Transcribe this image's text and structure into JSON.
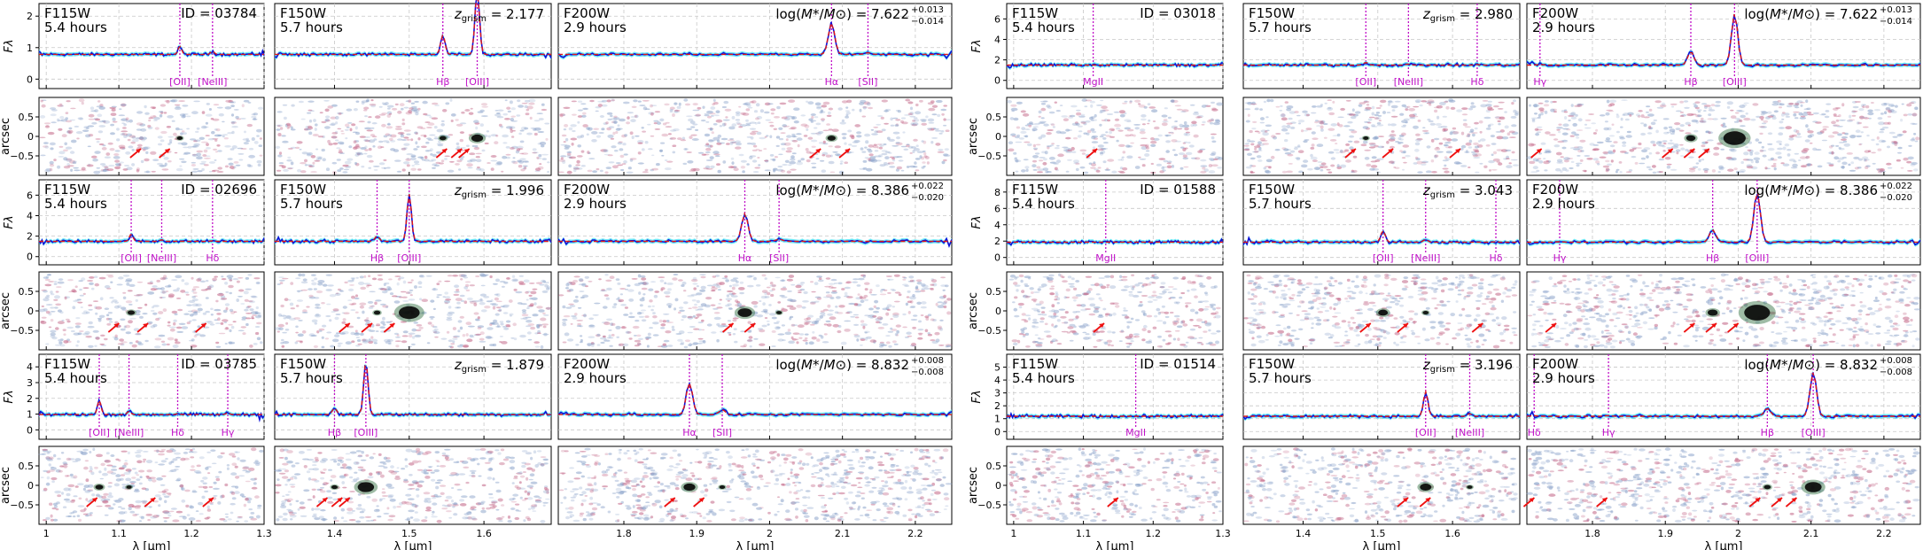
{
  "figure_labels": {
    "flux": "Fλ",
    "arcsec": "arcsec",
    "xlabel": "λ [μm]"
  },
  "chart_data": [
    {
      "type": "line",
      "side": "left",
      "filters": [
        {
          "name": "F115W",
          "time": "5.4 hours",
          "xlim": [
            0.99,
            1.3
          ],
          "xticks": [
            1.0,
            1.1,
            1.2,
            1.3
          ]
        },
        {
          "name": "F150W",
          "time": "5.7 hours",
          "xlim": [
            1.32,
            1.69
          ],
          "xticks": [
            1.4,
            1.5,
            1.6
          ]
        },
        {
          "name": "F200W",
          "time": "2.9 hours",
          "xlim": [
            1.71,
            2.25
          ],
          "xticks": [
            1.8,
            1.9,
            2.0,
            2.1,
            2.2
          ]
        }
      ],
      "galaxies": [
        {
          "id": "ID = 03784",
          "z_value": "= 2.177",
          "mass_value": "7.622",
          "mass_err": [
            "+0.013",
            "−0.014"
          ],
          "yticks": [
            0,
            1,
            2
          ],
          "ylim": [
            -0.3,
            2.4
          ],
          "arcsec_ticks": [
            "0.5",
            "0",
            "−0.5"
          ],
          "lines": [
            {
              "name": "[OII]",
              "wave": 1.184
            },
            {
              "name": "[NeIII]",
              "wave": 1.229
            },
            {
              "name": "Hβ",
              "wave": 1.545
            },
            {
              "name": "[OIII]",
              "wave": 1.591
            },
            {
              "name": "Hα",
              "wave": 2.085
            },
            {
              "name": "[SII]",
              "wave": 2.135
            }
          ],
          "arrows": [
            1.14,
            1.18,
            1.56,
            1.58,
            1.59,
            2.08,
            2.12
          ]
        },
        {
          "id": "ID = 02696",
          "z_value": "= 1.996",
          "mass_value": "8.386",
          "mass_err": [
            "+0.022",
            "−0.020"
          ],
          "yticks": [
            0,
            2,
            4,
            6
          ],
          "ylim": [
            -0.8,
            7.5
          ],
          "arcsec_ticks": [
            "0.5",
            "0",
            "−0.5"
          ],
          "lines": [
            {
              "name": "[OII]",
              "wave": 1.117
            },
            {
              "name": "[NeIII]",
              "wave": 1.159
            },
            {
              "name": "Hδ",
              "wave": 1.229
            },
            {
              "name": "Hβ",
              "wave": 1.457
            },
            {
              "name": "[OIII]",
              "wave": 1.5
            },
            {
              "name": "Hα",
              "wave": 1.966
            },
            {
              "name": "[SII]",
              "wave": 2.013
            }
          ],
          "arrows": [
            1.11,
            1.15,
            1.23,
            1.43,
            1.46,
            1.49,
            1.96,
            1.99
          ]
        },
        {
          "id": "ID = 03785",
          "z_value": "= 1.879",
          "mass_value": "8.832",
          "mass_err": [
            "+0.008",
            "−0.008"
          ],
          "yticks": [
            0,
            1,
            2,
            3,
            4
          ],
          "ylim": [
            -0.6,
            4.8
          ],
          "arcsec_ticks": [
            "0.5",
            "0",
            "−0.5"
          ],
          "lines": [
            {
              "name": "[OII]",
              "wave": 1.073
            },
            {
              "name": "[NeIII]",
              "wave": 1.114
            },
            {
              "name": "Hδ",
              "wave": 1.181
            },
            {
              "name": "Hγ",
              "wave": 1.25
            },
            {
              "name": "Hβ",
              "wave": 1.4
            },
            {
              "name": "[OIII]",
              "wave": 1.442
            },
            {
              "name": "Hα",
              "wave": 1.89
            },
            {
              "name": "[SII]",
              "wave": 1.935
            }
          ],
          "arrows": [
            1.08,
            1.16,
            1.24,
            1.4,
            1.42,
            1.43,
            1.88,
            1.92
          ]
        }
      ]
    },
    {
      "type": "line",
      "side": "right",
      "filters": [
        {
          "name": "F115W",
          "time": "5.4 hours",
          "xlim": [
            0.99,
            1.3
          ],
          "xticks": [
            1.0,
            1.1,
            1.2,
            1.3
          ]
        },
        {
          "name": "F150W",
          "time": "5.7 hours",
          "xlim": [
            1.32,
            1.69
          ],
          "xticks": [
            1.4,
            1.5,
            1.6
          ]
        },
        {
          "name": "F200W",
          "time": "2.9 hours",
          "xlim": [
            1.71,
            2.25
          ],
          "xticks": [
            1.8,
            1.9,
            2.0,
            2.1,
            2.2
          ]
        }
      ],
      "galaxies": [
        {
          "id": "ID = 03018",
          "z_value": "= 2.980",
          "mass_value": "7.622",
          "mass_err": [
            "+0.013",
            "−0.014"
          ],
          "yticks": [
            0,
            2,
            4,
            6
          ],
          "ylim": [
            -0.8,
            7.5
          ],
          "arcsec_ticks": [
            "0.5",
            "0",
            "−0.5"
          ],
          "lines": [
            {
              "name": "MgII",
              "wave": 1.114
            },
            {
              "name": "[OII]",
              "wave": 1.484
            },
            {
              "name": "[NeIII]",
              "wave": 1.541
            },
            {
              "name": "Hδ",
              "wave": 1.633
            },
            {
              "name": "Hγ",
              "wave": 1.728
            },
            {
              "name": "Hβ",
              "wave": 1.935
            },
            {
              "name": "[OIII]",
              "wave": 1.995
            }
          ],
          "arrows": [
            1.13,
            1.48,
            1.53,
            1.62,
            1.74,
            1.92,
            1.95,
            1.97
          ]
        },
        {
          "id": "ID = 01588",
          "z_value": "= 3.043",
          "mass_value": "8.386",
          "mass_err": [
            "+0.022",
            "−0.020"
          ],
          "yticks": [
            0,
            2,
            4,
            6,
            8
          ],
          "ylim": [
            -0.9,
            9.5
          ],
          "arcsec_ticks": [
            "0.5",
            "0",
            "−0.5"
          ],
          "lines": [
            {
              "name": "MgII",
              "wave": 1.132
            },
            {
              "name": "[OII]",
              "wave": 1.507
            },
            {
              "name": "[NeIII]",
              "wave": 1.564
            },
            {
              "name": "Hδ",
              "wave": 1.658
            },
            {
              "name": "Hγ",
              "wave": 1.755
            },
            {
              "name": "Hβ",
              "wave": 1.965
            },
            {
              "name": "[OIII]",
              "wave": 2.026
            }
          ],
          "arrows": [
            1.14,
            1.5,
            1.55,
            1.65,
            1.76,
            1.95,
            1.98,
            2.01
          ]
        },
        {
          "id": "ID = 01514",
          "z_value": "= 3.196",
          "mass_value": "8.832",
          "mass_err": [
            "+0.008",
            "−0.008"
          ],
          "yticks": [
            0,
            1,
            2,
            3,
            4,
            5
          ],
          "ylim": [
            -0.6,
            6.0
          ],
          "arcsec_ticks": [
            "0.5",
            "0",
            "−0.5"
          ],
          "lines": [
            {
              "name": "MgII",
              "wave": 1.175
            },
            {
              "name": "[OII]",
              "wave": 1.564
            },
            {
              "name": "[NeIII]",
              "wave": 1.623
            },
            {
              "name": "Hδ",
              "wave": 1.72
            },
            {
              "name": "Hγ",
              "wave": 1.822
            },
            {
              "name": "Hβ",
              "wave": 2.04
            },
            {
              "name": "[OIII]",
              "wave": 2.103
            }
          ],
          "arrows": [
            1.16,
            1.55,
            1.58,
            1.73,
            1.83,
            2.04,
            2.07,
            2.09
          ]
        }
      ]
    }
  ]
}
